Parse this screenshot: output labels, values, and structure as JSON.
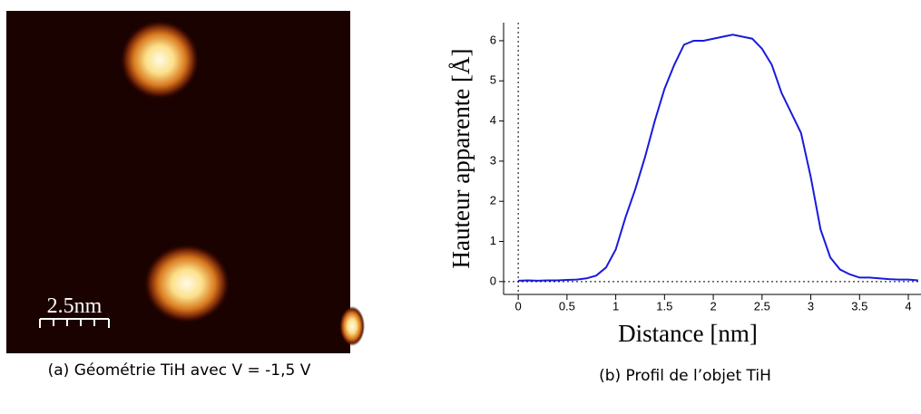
{
  "image_panel": {
    "scale_label": "2.5nm",
    "caption": "(a) Géométrie TiH avec V = -1,5 V"
  },
  "chart_data": {
    "type": "line",
    "caption": "(b) Profil de l’objet TiH",
    "xlabel": "Distance [nm]",
    "ylabel": "Hauteur apparente [Å]",
    "x": [
      0,
      0.1,
      0.2,
      0.3,
      0.4,
      0.5,
      0.6,
      0.7,
      0.8,
      0.9,
      1.0,
      1.1,
      1.2,
      1.3,
      1.4,
      1.5,
      1.6,
      1.7,
      1.8,
      1.9,
      2.0,
      2.1,
      2.2,
      2.3,
      2.4,
      2.5,
      2.6,
      2.7,
      2.8,
      2.9,
      3.0,
      3.1,
      3.2,
      3.3,
      3.4,
      3.5,
      3.6,
      3.7,
      3.8,
      3.9,
      4.0,
      4.1
    ],
    "series": [
      {
        "name": "Profil",
        "color": "#1a1adc",
        "values": [
          0.02,
          0.03,
          0.02,
          0.03,
          0.03,
          0.04,
          0.05,
          0.08,
          0.15,
          0.35,
          0.8,
          1.6,
          2.3,
          3.1,
          4.0,
          4.8,
          5.4,
          5.9,
          6.0,
          6.0,
          6.05,
          6.1,
          6.15,
          6.1,
          6.05,
          5.8,
          5.4,
          4.7,
          4.2,
          3.7,
          2.6,
          1.3,
          0.6,
          0.3,
          0.18,
          0.1,
          0.1,
          0.08,
          0.06,
          0.05,
          0.05,
          0.03
        ]
      }
    ],
    "xlim": [
      -0.15,
      4.13
    ],
    "ylim": [
      -0.32,
      6.45
    ],
    "xticks": [
      0,
      0.5,
      1,
      1.5,
      2,
      2.5,
      3,
      3.5,
      4
    ],
    "yticks": [
      0,
      1,
      2,
      3,
      4,
      5,
      6
    ]
  }
}
